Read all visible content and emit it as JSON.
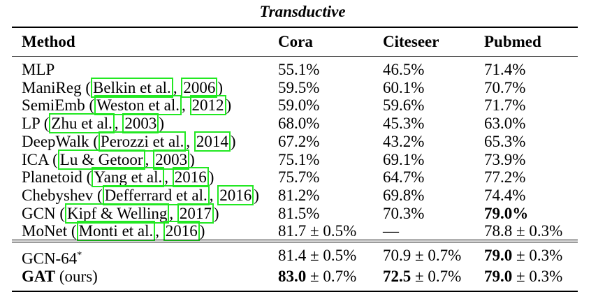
{
  "table": {
    "caption": "Transductive",
    "headers": [
      "Method",
      "Cora",
      "Citeseer",
      "Pubmed"
    ],
    "rows": [
      {
        "method": {
          "name": "MLP"
        },
        "cora": {
          "v": "55.1%"
        },
        "citeseer": {
          "v": "46.5%"
        },
        "pubmed": {
          "v": "71.4%"
        }
      },
      {
        "method": {
          "name": "ManiReg",
          "authors": "Belkin et al.",
          "year": "2006"
        },
        "cora": {
          "v": "59.5%"
        },
        "citeseer": {
          "v": "60.1%"
        },
        "pubmed": {
          "v": "70.7%"
        }
      },
      {
        "method": {
          "name": "SemiEmb",
          "authors": "Weston et al.",
          "year": "2012"
        },
        "cora": {
          "v": "59.0%"
        },
        "citeseer": {
          "v": "59.6%"
        },
        "pubmed": {
          "v": "71.7%"
        }
      },
      {
        "method": {
          "name": "LP",
          "authors": "Zhu et al.",
          "year": "2003"
        },
        "cora": {
          "v": "68.0%"
        },
        "citeseer": {
          "v": "45.3%"
        },
        "pubmed": {
          "v": "63.0%"
        }
      },
      {
        "method": {
          "name": "DeepWalk",
          "authors": "Perozzi et al.",
          "year": "2014"
        },
        "cora": {
          "v": "67.2%"
        },
        "citeseer": {
          "v": "43.2%"
        },
        "pubmed": {
          "v": "65.3%"
        }
      },
      {
        "method": {
          "name": "ICA",
          "authors": "Lu & Getoor",
          "year": "2003"
        },
        "cora": {
          "v": "75.1%"
        },
        "citeseer": {
          "v": "69.1%"
        },
        "pubmed": {
          "v": "73.9%"
        }
      },
      {
        "method": {
          "name": "Planetoid",
          "authors": "Yang et al.",
          "year": "2016"
        },
        "cora": {
          "v": "75.7%"
        },
        "citeseer": {
          "v": "64.7%"
        },
        "pubmed": {
          "v": "77.2%"
        }
      },
      {
        "method": {
          "name": "Chebyshev",
          "authors": "Defferrard et al.",
          "year": "2016"
        },
        "cora": {
          "v": "81.2%"
        },
        "citeseer": {
          "v": "69.8%"
        },
        "pubmed": {
          "v": "74.4%"
        }
      },
      {
        "method": {
          "name": "GCN",
          "authors": "Kipf & Welling",
          "year": "2017"
        },
        "cora": {
          "v": "81.5%"
        },
        "citeseer": {
          "v": "70.3%"
        },
        "pubmed": {
          "v": "79.0%",
          "bold": true
        }
      },
      {
        "method": {
          "name": "MoNet",
          "authors": "Monti et al.",
          "year": "2016"
        },
        "cora": {
          "v": "81.7",
          "pm": "0.5%"
        },
        "citeseer": {
          "v": "—"
        },
        "pubmed": {
          "v": "78.8",
          "pm": "0.3%"
        }
      }
    ],
    "rows2": [
      {
        "method": {
          "name": "GCN-64",
          "sup": "*"
        },
        "cora": {
          "v": "81.4",
          "pm": "0.5%"
        },
        "citeseer": {
          "v": "70.9",
          "pm": "0.7%"
        },
        "pubmed": {
          "v": "79.0",
          "pm": "0.3%",
          "bold": true
        }
      },
      {
        "method": {
          "name": "GAT",
          "bold": true,
          "suffix": "(ours)"
        },
        "cora": {
          "v": "83.0",
          "pm": "0.7%",
          "bold": true
        },
        "citeseer": {
          "v": "72.5",
          "pm": "0.7%",
          "bold": true
        },
        "pubmed": {
          "v": "79.0",
          "pm": "0.3%",
          "bold": true
        }
      }
    ]
  },
  "colors": {
    "citation_box": "#22e822",
    "text": "#000000"
  }
}
